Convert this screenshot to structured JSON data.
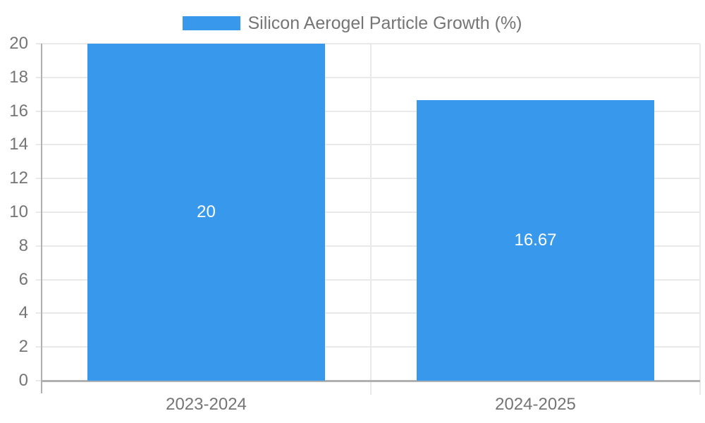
{
  "chart_data": {
    "type": "bar",
    "title": "Silicon Aerogel Particle Growth (%)",
    "legend": {
      "position": "top-center",
      "entries": [
        "Silicon Aerogel Particle Growth (%)"
      ]
    },
    "categories": [
      "2023-2024",
      "2024-2025"
    ],
    "values": [
      20,
      16.67
    ],
    "value_labels": [
      "20",
      "16.67"
    ],
    "xlabel": "",
    "ylabel": "",
    "ylim": [
      0,
      20
    ],
    "y_ticks": [
      0,
      2,
      4,
      6,
      8,
      10,
      12,
      14,
      16,
      18,
      20
    ],
    "grid": true,
    "colors": {
      "bar": "#3898ec",
      "axis_text": "#757575",
      "data_label": "#ffffff",
      "gridline": "#e9e9e9",
      "axis_line": "#b0b0b0"
    }
  }
}
